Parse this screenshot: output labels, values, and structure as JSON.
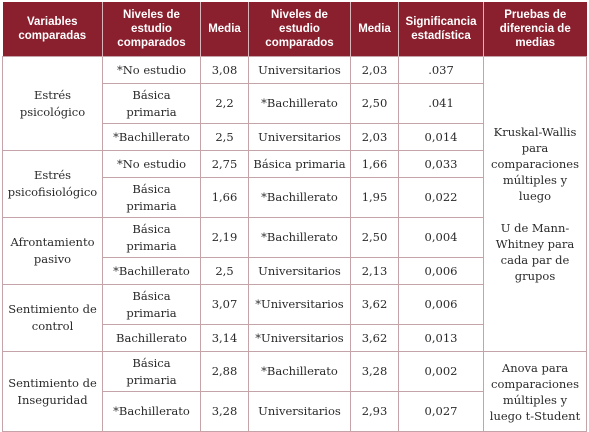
{
  "headers": [
    "Variables comparadas",
    "Niveles de estudio comparados",
    "Media",
    "Niveles de estudio comparados",
    "Media",
    "Significancia estadística",
    "Pruebas de diferencia de medias"
  ],
  "groups": [
    {
      "variable": "Estrés psicológico",
      "rows": [
        {
          "nivel_a": "*No estudio",
          "media_a": "3,08",
          "nivel_b": "Universitarios",
          "media_b": "2,03",
          "sig": ".037"
        },
        {
          "nivel_a": "Básica primaria",
          "media_a": "2,2",
          "nivel_b": "*Bachillerato",
          "media_b": "2,50",
          "sig": ".041"
        },
        {
          "nivel_a": "*Bachillerato",
          "media_a": "2,5",
          "nivel_b": "Universitarios",
          "media_b": "2,03",
          "sig": "0,014"
        }
      ]
    },
    {
      "variable": "Estrés psicofisiológico",
      "rows": [
        {
          "nivel_a": "*No estudio",
          "media_a": "2,75",
          "nivel_b": "Básica primaria",
          "media_b": "1,66",
          "sig": "0,033"
        },
        {
          "nivel_a": "Básica primaria",
          "media_a": "1,66",
          "nivel_b": "*Bachillerato",
          "media_b": "1,95",
          "sig": "0,022"
        }
      ]
    },
    {
      "variable": "Afrontamiento pasivo",
      "rows": [
        {
          "nivel_a": "Básica primaria",
          "media_a": "2,19",
          "nivel_b": "*Bachillerato",
          "media_b": "2,50",
          "sig": "0,004"
        },
        {
          "nivel_a": "*Bachillerato",
          "media_a": "2,5",
          "nivel_b": "Universitarios",
          "media_b": "2,13",
          "sig": "0,006"
        }
      ]
    },
    {
      "variable": "Sentimiento de control",
      "rows": [
        {
          "nivel_a": "Básica primaria",
          "media_a": "3,07",
          "nivel_b": "*Universitarios",
          "media_b": "3,62",
          "sig": "0,006"
        },
        {
          "nivel_a": "Bachillerato",
          "media_a": "3,14",
          "nivel_b": "*Universitarios",
          "media_b": "3,62",
          "sig": "0,013"
        }
      ]
    },
    {
      "variable": "Sentimiento de Inseguridad",
      "rows": [
        {
          "nivel_a": "Básica primaria",
          "media_a": "2,88",
          "nivel_b": "*Bachillerato",
          "media_b": "3,28",
          "sig": "0,002"
        },
        {
          "nivel_a": "*Bachillerato",
          "media_a": "3,28",
          "nivel_b": "Universitarios",
          "media_b": "2,93",
          "sig": "0,027"
        }
      ]
    }
  ],
  "tests": {
    "kruskal": "Kruskal-Wallis para comparaciones múltiples y luego",
    "mann": "U de Mann-Whitney para cada par de grupos",
    "anova": "Anova para comparaciones múltiples y luego t-Student"
  },
  "colors": {
    "header_bg": "#8a1f2d",
    "header_text": "#ffffff",
    "border": "#c4a4a8"
  }
}
